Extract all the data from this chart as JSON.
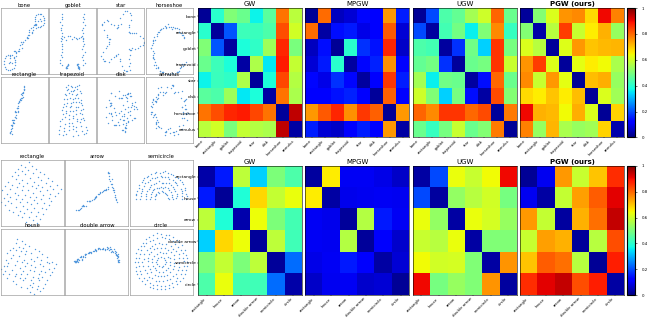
{
  "shapes_top_names": [
    "bone",
    "goblet",
    "star",
    "horseshoe",
    "rectangle",
    "trapezoid",
    "disk",
    "annulus"
  ],
  "shapes_bottom_names": [
    "rectangle",
    "house",
    "arrow",
    "double arrow",
    "semicircle",
    "circle"
  ],
  "methods": [
    "GW",
    "MPGW",
    "UGW",
    "PGW (ours)"
  ],
  "dot_color": "#5599dd",
  "top_ylabels": [
    "bone",
    "rectangle",
    "goblet",
    "trapezoid",
    "star",
    "disk",
    "horseshoe",
    "annulus"
  ],
  "top_xlabels": [
    "bone",
    "rectangle",
    "goblet",
    "trapezoid",
    "star",
    "disk",
    "horseshoe",
    "annulus"
  ],
  "bot_ylabels": [
    "rectangle",
    "house",
    "arrow",
    "double arrow",
    "semicircle",
    "circle"
  ],
  "bot_xlabels": [
    "rectangle",
    "house",
    "arrow",
    "double arrow",
    "semicircle",
    "circle"
  ]
}
